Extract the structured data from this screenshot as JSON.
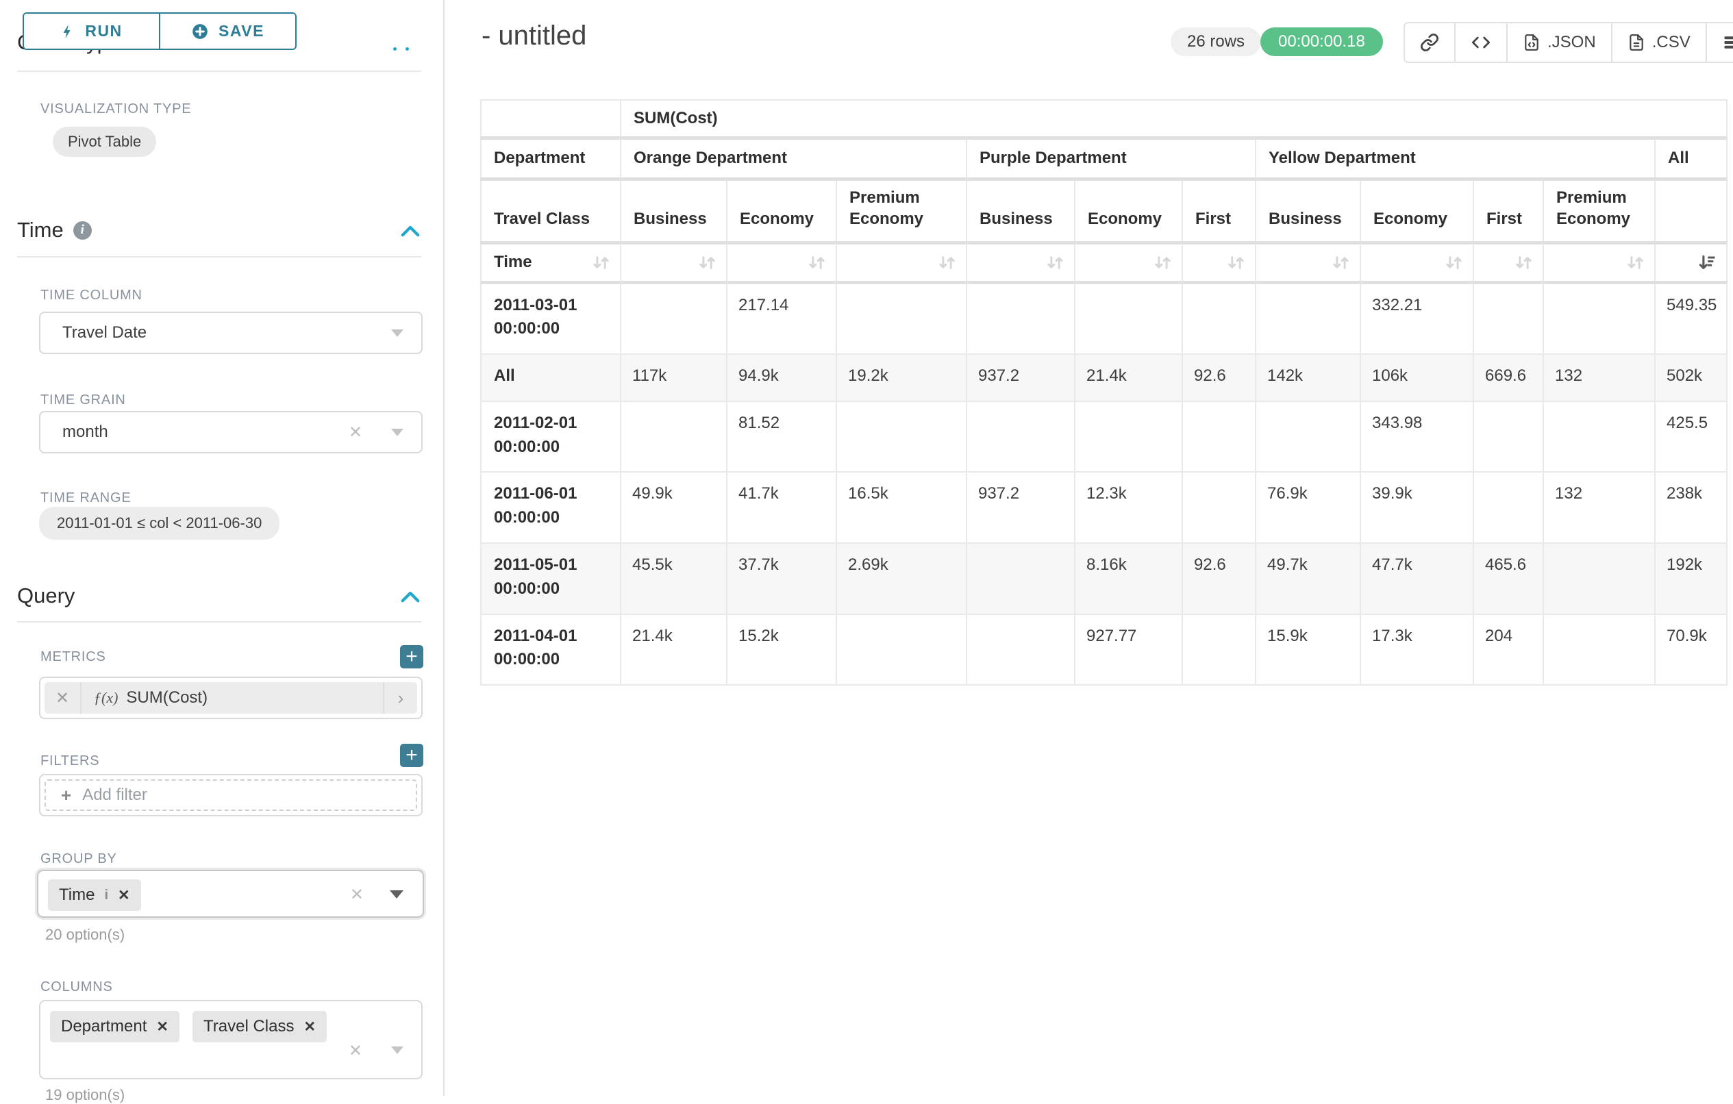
{
  "colors": {
    "primary": "#20A7C9",
    "button_teal": "#2E7D96",
    "success_green": "#5AC189"
  },
  "sidebar": {
    "run_label": "RUN",
    "save_label": "SAVE",
    "chart_type_heading": "Chart Type",
    "visualization_type_label": "VISUALIZATION TYPE",
    "visualization_type_value": "Pivot Table",
    "time_section": {
      "heading": "Time",
      "time_column_label": "TIME COLUMN",
      "time_column_value": "Travel Date",
      "time_grain_label": "TIME GRAIN",
      "time_grain_value": "month",
      "time_range_label": "TIME RANGE",
      "time_range_value": "2011-01-01 ≤ col < 2011-06-30"
    },
    "query_section": {
      "heading": "Query",
      "metrics_label": "METRICS",
      "metric_fx": "ƒ(x)",
      "metric_value": "SUM(Cost)",
      "filters_label": "FILTERS",
      "add_filter_placeholder": "Add filter",
      "group_by_label": "GROUP BY",
      "group_by_chips": [
        "Time"
      ],
      "group_by_options": "20 option(s)",
      "columns_label": "COLUMNS",
      "columns_chips": [
        "Department",
        "Travel Class"
      ],
      "columns_options": "19 option(s)"
    }
  },
  "header": {
    "title": "- untitled",
    "row_count": "26 rows",
    "timer": "00:00:00.18",
    "json_label": ".JSON",
    "csv_label": ".CSV"
  },
  "table": {
    "metric_header": "SUM(Cost)",
    "department_row_label": "Department",
    "department_groups": [
      {
        "label": "Orange Department",
        "span": 3
      },
      {
        "label": "Purple Department",
        "span": 3
      },
      {
        "label": "Yellow Department",
        "span": 4
      },
      {
        "label": "All",
        "span": 1
      }
    ],
    "travel_class_row_label": "Travel Class",
    "travel_classes": [
      "Business",
      "Economy",
      "Premium Economy",
      "Business",
      "Economy",
      "First",
      "Business",
      "Economy",
      "First",
      "Premium Economy",
      ""
    ],
    "time_row_label": "Time",
    "rows": [
      {
        "label": "2011-03-01 00:00:00",
        "values": [
          "",
          "217.14",
          "",
          "",
          "",
          "",
          "",
          "332.21",
          "",
          "",
          "549.35"
        ]
      },
      {
        "label": "All",
        "values": [
          "117k",
          "94.9k",
          "19.2k",
          "937.2",
          "21.4k",
          "92.6",
          "142k",
          "106k",
          "669.6",
          "132",
          "502k"
        ]
      },
      {
        "label": "2011-02-01 00:00:00",
        "values": [
          "",
          "81.52",
          "",
          "",
          "",
          "",
          "",
          "343.98",
          "",
          "",
          "425.5"
        ]
      },
      {
        "label": "2011-06-01 00:00:00",
        "values": [
          "49.9k",
          "41.7k",
          "16.5k",
          "937.2",
          "12.3k",
          "",
          "76.9k",
          "39.9k",
          "",
          "132",
          "238k"
        ]
      },
      {
        "label": "2011-05-01 00:00:00",
        "values": [
          "45.5k",
          "37.7k",
          "2.69k",
          "",
          "8.16k",
          "92.6",
          "49.7k",
          "47.7k",
          "465.6",
          "",
          "192k"
        ]
      },
      {
        "label": "2011-04-01 00:00:00",
        "values": [
          "21.4k",
          "15.2k",
          "",
          "",
          "927.77",
          "",
          "15.9k",
          "17.3k",
          "204",
          "",
          "70.9k"
        ]
      }
    ]
  }
}
